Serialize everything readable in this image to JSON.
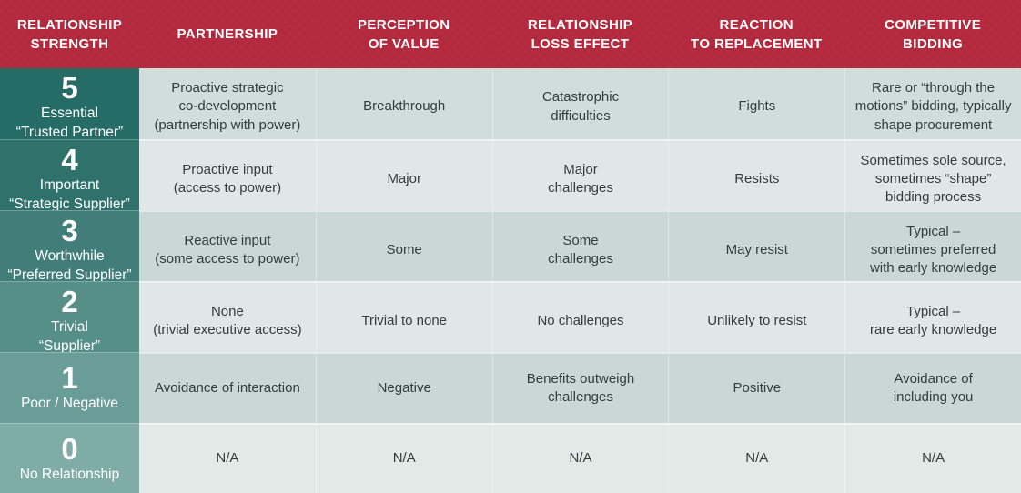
{
  "chart_data": {
    "type": "table",
    "columns": [
      "RELATIONSHIP\nSTRENGTH",
      "PARTNERSHIP",
      "PERCEPTION\nOF VALUE",
      "RELATIONSHIP\nLOSS EFFECT",
      "REACTION\nTO REPLACEMENT",
      "COMPETITIVE\nBIDDING"
    ],
    "rows": [
      {
        "score": "5",
        "level": "Essential",
        "nickname": "“Trusted Partner”",
        "cells": [
          "Proactive strategic\nco-development\n(partnership with power)",
          "Breakthrough",
          "Catastrophic\ndifficulties",
          "Fights",
          "Rare or “through the\nmotions” bidding, typically\nshape procurement"
        ]
      },
      {
        "score": "4",
        "level": "Important",
        "nickname": "“Strategic Supplier”",
        "cells": [
          "Proactive input\n(access to power)",
          "Major",
          "Major\nchallenges",
          "Resists",
          "Sometimes sole source,\nsometimes “shape”\nbidding process"
        ]
      },
      {
        "score": "3",
        "level": "Worthwhile",
        "nickname": "“Preferred Supplier”",
        "cells": [
          "Reactive input\n(some access to power)",
          "Some",
          "Some\nchallenges",
          "May resist",
          "Typical –\nsometimes preferred\nwith early knowledge"
        ]
      },
      {
        "score": "2",
        "level": "Trivial",
        "nickname": "“Supplier”",
        "cells": [
          "None\n(trivial executive access)",
          "Trivial to none",
          "No challenges",
          "Unlikely to resist",
          "Typical –\nrare early knowledge"
        ]
      },
      {
        "score": "1",
        "level": "Poor / Negative",
        "nickname": "",
        "cells": [
          "Avoidance of interaction",
          "Negative",
          "Benefits outweigh\nchallenges",
          "Positive",
          "Avoidance of\nincluding you"
        ]
      },
      {
        "score": "0",
        "level": "No Relationship",
        "nickname": "",
        "cells": [
          "N/A",
          "N/A",
          "N/A",
          "N/A",
          "N/A"
        ]
      }
    ]
  },
  "colors": {
    "header_bg": "#b72b40",
    "header_text": "#ffffff",
    "body_text": "#323d3c",
    "label_bgs": [
      "#256b66",
      "#2f726c",
      "#427e79",
      "#568e88",
      "#6b9d98",
      "#80aca8"
    ],
    "row_bgs": [
      "#cfdddb",
      "#dfe8e6",
      "#c9d8d5",
      "#dfe8e6",
      "#c9d8d5",
      "#e2eae8"
    ]
  }
}
